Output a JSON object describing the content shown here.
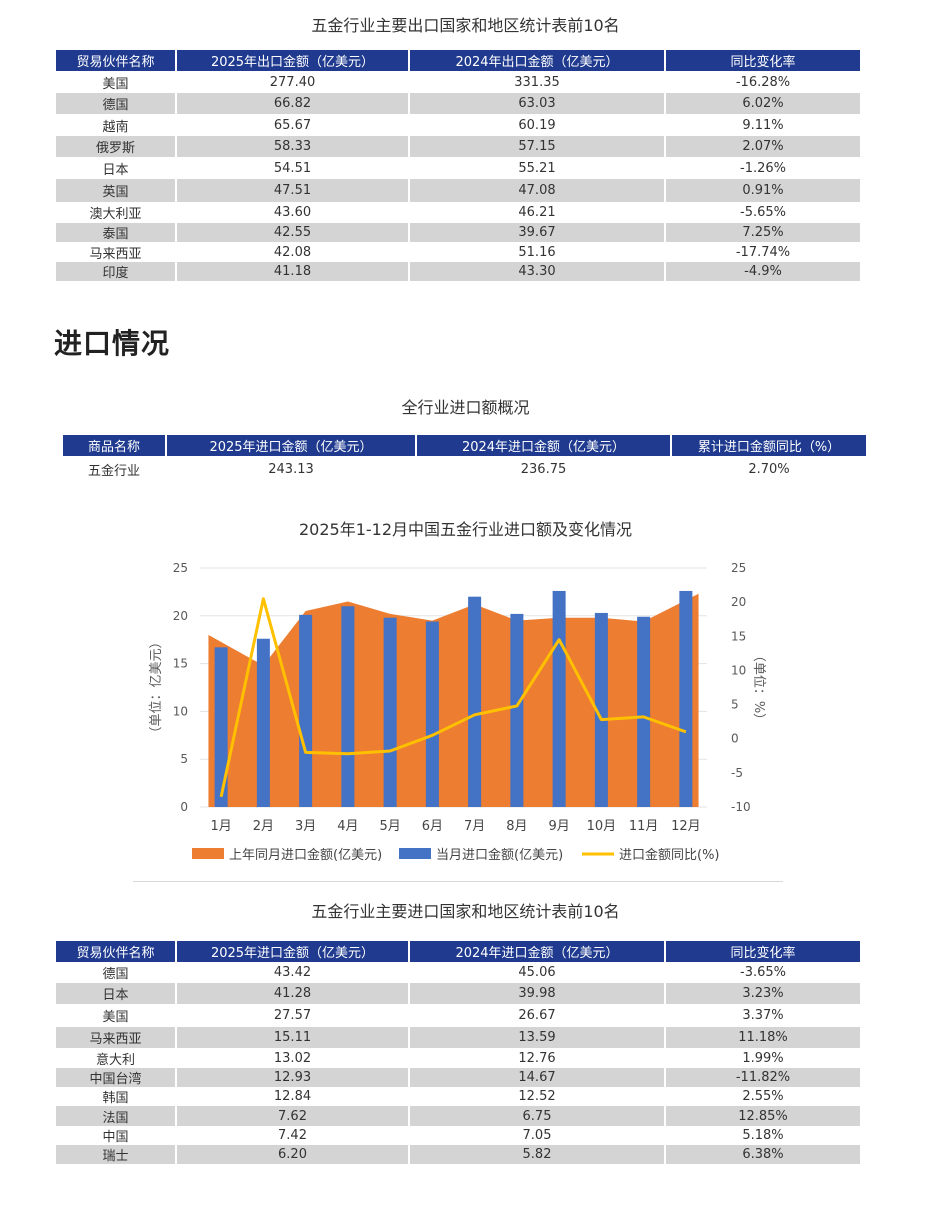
{
  "export_table": {
    "title": "五金行业主要出口国家和地区统计表前10名",
    "headers": [
      "贸易伙伴名称",
      "2025年出口金额（亿美元）",
      "2024年出口金额（亿美元）",
      "同比变化率"
    ],
    "rows": [
      [
        "美国",
        "277.40",
        "331.35",
        "-16.28%"
      ],
      [
        "德国",
        "66.82",
        "63.03",
        "6.02%"
      ],
      [
        "越南",
        "65.67",
        "60.19",
        "9.11%"
      ],
      [
        "俄罗斯",
        "58.33",
        "57.15",
        "2.07%"
      ],
      [
        "日本",
        "54.51",
        "55.21",
        "-1.26%"
      ],
      [
        "英国",
        "47.51",
        "47.08",
        "0.91%"
      ],
      [
        "澳大利亚",
        "43.60",
        "46.21",
        "-5.65%"
      ],
      [
        "泰国",
        "42.55",
        "39.67",
        "7.25%"
      ],
      [
        "马来西亚",
        "42.08",
        "51.16",
        "-17.74%"
      ],
      [
        "印度",
        "41.18",
        "43.30",
        "-4.9%"
      ]
    ]
  },
  "import_section": {
    "heading": "进口情况"
  },
  "import_overview": {
    "title": "全行业进口额概况",
    "headers": [
      "商品名称",
      "2025年进口金额（亿美元）",
      "2024年进口金额（亿美元）",
      "累计进口金额同比（%）"
    ],
    "rows": [
      [
        "五金行业",
        "243.13",
        "236.75",
        "2.70%"
      ]
    ]
  },
  "chart_data": {
    "type": "bar",
    "title": "2025年1-12月中国五金行业进口额及变化情况",
    "categories": [
      "1月",
      "2月",
      "3月",
      "4月",
      "5月",
      "6月",
      "7月",
      "8月",
      "9月",
      "10月",
      "11月",
      "12月"
    ],
    "series": [
      {
        "name": "上年同月进口金额(亿美元)",
        "type": "area",
        "axis": "left",
        "color": "#ed7d31",
        "values": [
          18.0,
          14.8,
          20.5,
          21.5,
          20.2,
          19.5,
          21.2,
          19.5,
          19.8,
          19.8,
          19.4,
          22.3
        ]
      },
      {
        "name": "当月进口金额(亿美元)",
        "type": "bar",
        "axis": "left",
        "color": "#4472c4",
        "values": [
          16.7,
          17.6,
          20.1,
          21.0,
          19.8,
          19.4,
          22.0,
          20.2,
          22.6,
          20.3,
          19.9,
          22.6
        ]
      },
      {
        "name": "进口金额同比(%)",
        "type": "line",
        "axis": "right",
        "color": "#ffc000",
        "values": [
          -8.5,
          20.5,
          -2.0,
          -2.2,
          -1.8,
          0.5,
          3.5,
          4.8,
          14.5,
          2.8,
          3.2,
          1.0
        ]
      }
    ],
    "ylabel_left": "（单位：亿美元）",
    "ylabel_right": "（单位：%）",
    "ylim_left": [
      0,
      25
    ],
    "ylim_right": [
      -10,
      25
    ],
    "yticks_left": [
      "0",
      "5",
      "10",
      "15",
      "20",
      "25"
    ],
    "yticks_right": [
      "-10",
      "-5",
      "0",
      "5",
      "10",
      "15",
      "20",
      "25"
    ],
    "grid": true,
    "legend": "bottom"
  },
  "import_table": {
    "title": "五金行业主要进口国家和地区统计表前10名",
    "headers": [
      "贸易伙伴名称",
      "2025年进口金额（亿美元）",
      "2024年进口金额（亿美元）",
      "同比变化率"
    ],
    "rows": [
      [
        "德国",
        "43.42",
        "45.06",
        "-3.65%"
      ],
      [
        "日本",
        "41.28",
        "39.98",
        "3.23%"
      ],
      [
        "美国",
        "27.57",
        "26.67",
        "3.37%"
      ],
      [
        "马来西亚",
        "15.11",
        "13.59",
        "11.18%"
      ],
      [
        "意大利",
        "13.02",
        "12.76",
        "1.99%"
      ],
      [
        "中国台湾",
        "12.93",
        "14.67",
        "-11.82%"
      ],
      [
        "韩国",
        "12.84",
        "12.52",
        "2.55%"
      ],
      [
        "法国",
        "7.62",
        "6.75",
        "12.85%"
      ],
      [
        "中国",
        "7.42",
        "7.05",
        "5.18%"
      ],
      [
        "瑞士",
        "6.20",
        "5.82",
        "6.38%"
      ]
    ]
  }
}
